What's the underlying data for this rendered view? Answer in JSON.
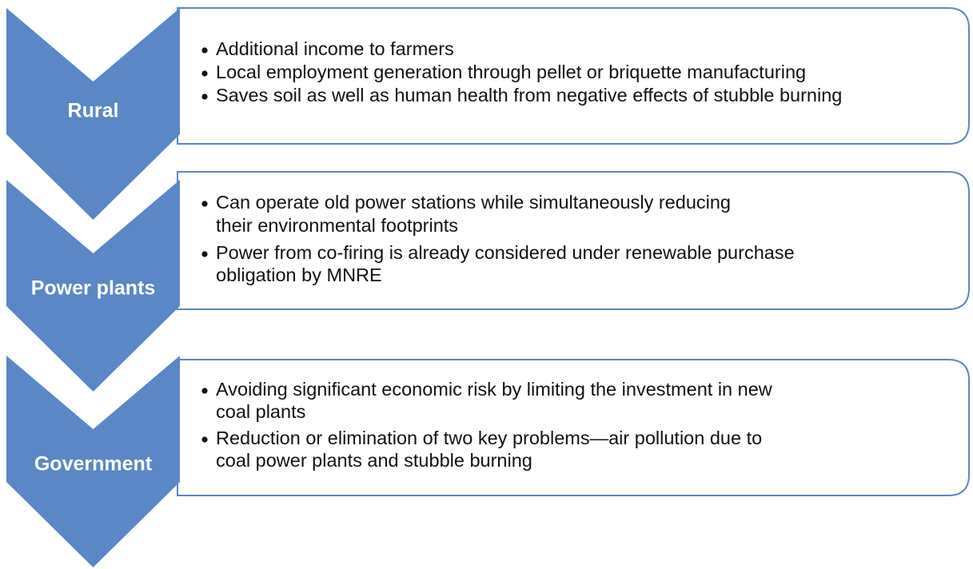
{
  "items": [
    {
      "label": "Rural",
      "bullets": [
        [
          "Additional income to farmers"
        ],
        [
          "Local employment generation through pellet or briquette manufacturing"
        ],
        [
          "Saves soil as well as human health from negative effects of stubble burning"
        ]
      ]
    },
    {
      "label": "Power plants",
      "bullets": [
        [
          "Can operate old power stations while simultaneously reducing",
          "their environmental footprints"
        ],
        [
          "Power from co-firing is already considered under renewable purchase",
          "obligation by MNRE"
        ]
      ]
    },
    {
      "label": "Government",
      "bullets": [
        [
          "Avoiding significant economic risk by limiting the investment in new",
          "coal plants"
        ],
        [
          "Reduction or elimination of two key problems—air pollution due to",
          "coal power plants and stubble burning"
        ]
      ]
    }
  ]
}
